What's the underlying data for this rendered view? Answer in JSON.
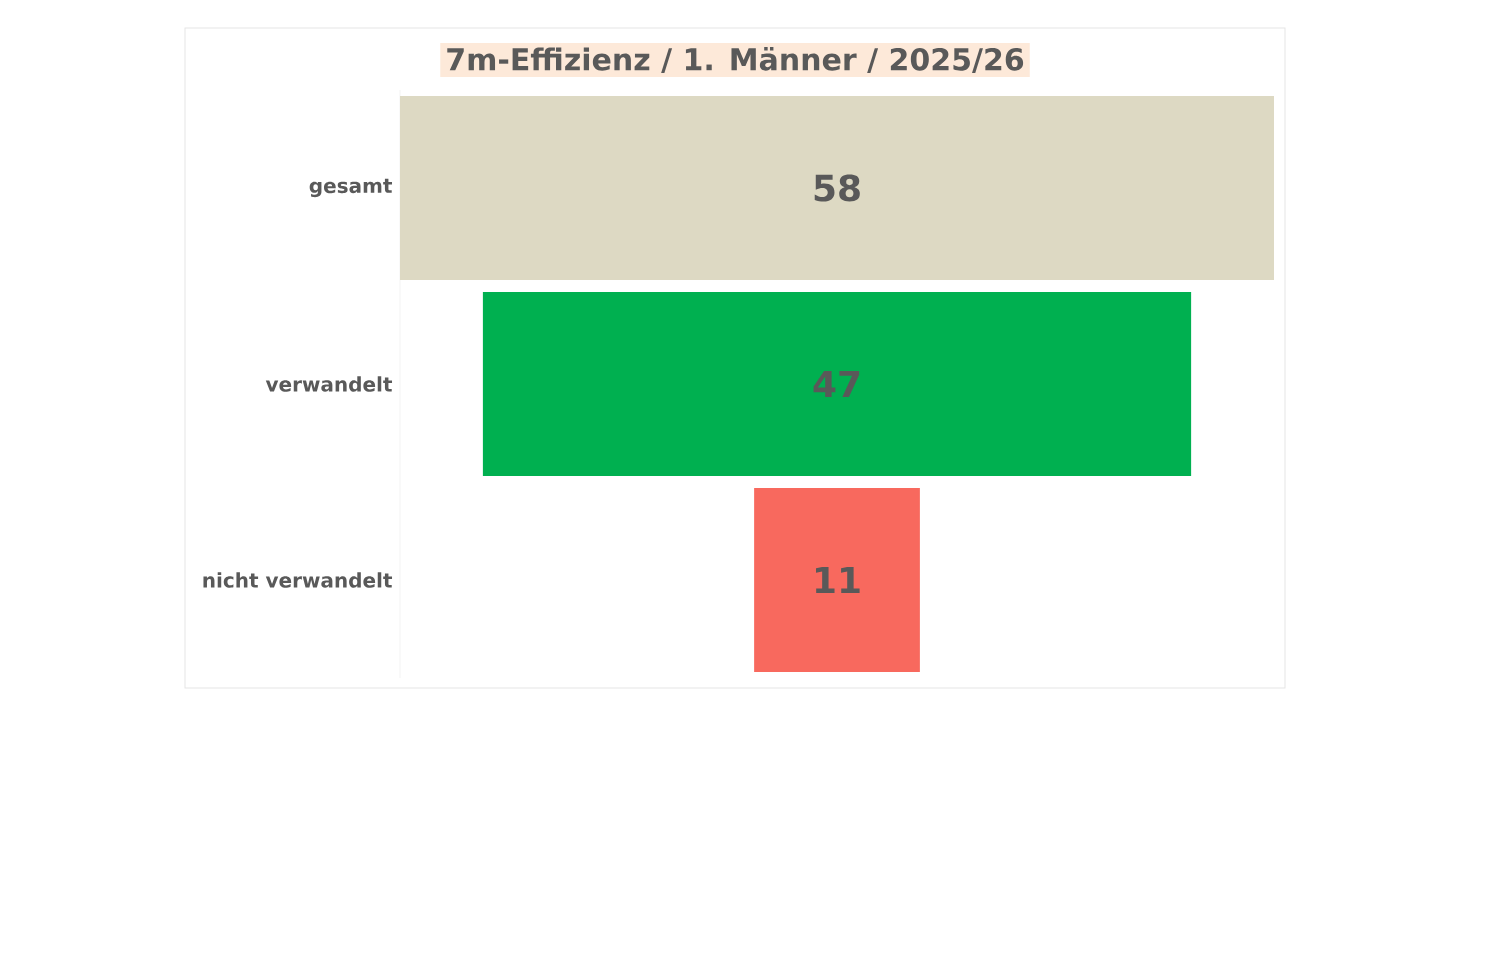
{
  "chart_data": {
    "type": "other",
    "title": "7m-Effizienz / 1. Männer / 2025/26",
    "categories": [
      "gesamt",
      "verwandelt",
      "nicht verwandelt"
    ],
    "values": [
      58,
      47,
      11
    ],
    "colors": [
      "#ddd9c3",
      "#00b050",
      "#f8695e"
    ],
    "data_labels": true
  }
}
